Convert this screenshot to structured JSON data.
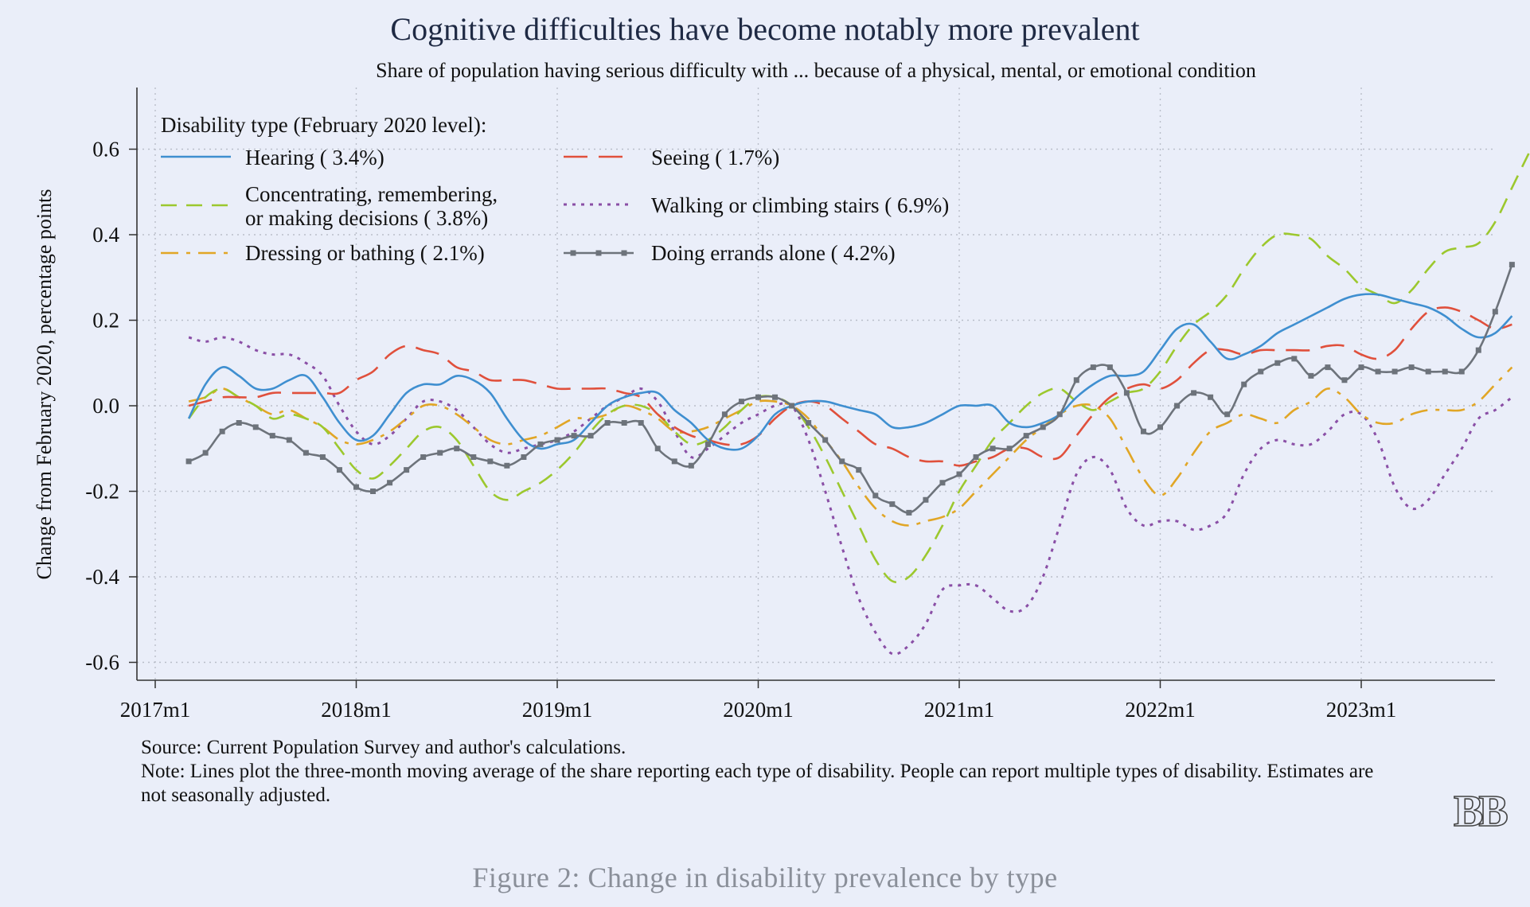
{
  "chart_data": {
    "type": "line",
    "title": "Cognitive difficulties have become notably more prevalent",
    "subtitle": "Share of population having serious difficulty with ... because of a physical, mental, or emotional condition",
    "xlabel": "",
    "ylabel": "Change from February 2020, percentage points",
    "ylim": [
      -0.64,
      0.72
    ],
    "yticks": [
      -0.6,
      -0.4,
      -0.2,
      0.0,
      0.2,
      0.4,
      0.6
    ],
    "ytick_labels": [
      "-0.6",
      "-0.4",
      "-0.2",
      "0.0",
      "0.2",
      "0.4",
      "0.6"
    ],
    "xticks": [
      "2017m1",
      "2018m1",
      "2019m1",
      "2020m1",
      "2021m1",
      "2022m1",
      "2023m1"
    ],
    "x_start": "2017m3",
    "x_end": "2023m8",
    "grid": true,
    "legend_title": "Disability type (February 2020 level):",
    "legend_position": "top-left",
    "series": [
      {
        "name": "Hearing ( 3.4%)",
        "color": "#3f8fd0",
        "dash": "solid",
        "markers": false,
        "values": [
          -0.03,
          0.05,
          0.09,
          0.07,
          0.04,
          0.04,
          0.06,
          0.07,
          0.02,
          -0.04,
          -0.08,
          -0.07,
          -0.02,
          0.03,
          0.05,
          0.05,
          0.07,
          0.06,
          0.03,
          -0.03,
          -0.08,
          -0.1,
          -0.09,
          -0.08,
          -0.04,
          0.0,
          0.02,
          0.03,
          0.03,
          -0.01,
          -0.04,
          -0.08,
          -0.1,
          -0.1,
          -0.07,
          -0.02,
          0.0,
          0.01,
          0.01,
          0.0,
          -0.01,
          -0.02,
          -0.05,
          -0.05,
          -0.04,
          -0.02,
          0.0,
          0.0,
          0.0,
          -0.04,
          -0.05,
          -0.04,
          -0.02,
          0.02,
          0.05,
          0.07,
          0.07,
          0.08,
          0.13,
          0.18,
          0.19,
          0.15,
          0.11,
          0.12,
          0.14,
          0.17,
          0.19,
          0.21,
          0.23,
          0.25,
          0.26,
          0.26,
          0.25,
          0.24,
          0.23,
          0.21,
          0.18,
          0.16,
          0.17,
          0.21
        ]
      },
      {
        "name": "Seeing ( 1.7%)",
        "color": "#e0503c",
        "dash": "long",
        "markers": false,
        "values": [
          0.0,
          0.01,
          0.02,
          0.02,
          0.02,
          0.03,
          0.03,
          0.03,
          0.03,
          0.03,
          0.06,
          0.08,
          0.12,
          0.14,
          0.13,
          0.12,
          0.09,
          0.08,
          0.06,
          0.06,
          0.06,
          0.05,
          0.04,
          0.04,
          0.04,
          0.04,
          0.03,
          0.02,
          -0.02,
          -0.05,
          -0.07,
          -0.08,
          -0.09,
          -0.09,
          -0.07,
          -0.03,
          0.0,
          0.01,
          0.0,
          -0.03,
          -0.06,
          -0.09,
          -0.1,
          -0.12,
          -0.13,
          -0.13,
          -0.14,
          -0.13,
          -0.12,
          -0.1,
          -0.1,
          -0.12,
          -0.12,
          -0.07,
          -0.02,
          0.02,
          0.04,
          0.05,
          0.04,
          0.06,
          0.1,
          0.13,
          0.13,
          0.12,
          0.13,
          0.13,
          0.13,
          0.13,
          0.14,
          0.14,
          0.12,
          0.11,
          0.13,
          0.18,
          0.22,
          0.23,
          0.22,
          0.2,
          0.18,
          0.19
        ]
      },
      {
        "name": "Concentrating, remembering, or making decisions ( 3.8%)",
        "color": "#9cc82e",
        "dash": "dash",
        "markers": false,
        "values": [
          -0.03,
          0.02,
          0.04,
          0.02,
          0.0,
          -0.03,
          -0.02,
          -0.03,
          -0.05,
          -0.1,
          -0.15,
          -0.17,
          -0.14,
          -0.1,
          -0.06,
          -0.05,
          -0.08,
          -0.14,
          -0.2,
          -0.22,
          -0.2,
          -0.18,
          -0.15,
          -0.11,
          -0.06,
          -0.02,
          0.0,
          0.0,
          -0.02,
          -0.06,
          -0.09,
          -0.08,
          -0.05,
          -0.01,
          0.02,
          0.02,
          0.0,
          -0.05,
          -0.12,
          -0.2,
          -0.28,
          -0.36,
          -0.41,
          -0.4,
          -0.35,
          -0.28,
          -0.2,
          -0.14,
          -0.08,
          -0.04,
          0.0,
          0.03,
          0.04,
          0.01,
          -0.01,
          0.01,
          0.03,
          0.04,
          0.08,
          0.14,
          0.19,
          0.22,
          0.26,
          0.32,
          0.37,
          0.4,
          0.4,
          0.39,
          0.35,
          0.32,
          0.28,
          0.26,
          0.24,
          0.27,
          0.32,
          0.36,
          0.37,
          0.38,
          0.43,
          0.51,
          0.59
        ]
      },
      {
        "name": "Walking or climbing stairs ( 6.9%)",
        "color": "#8a4fa6",
        "dash": "dot",
        "markers": false,
        "values": [
          0.16,
          0.15,
          0.16,
          0.15,
          0.13,
          0.12,
          0.12,
          0.1,
          0.07,
          0.0,
          -0.06,
          -0.09,
          -0.07,
          -0.03,
          0.01,
          0.01,
          -0.01,
          -0.05,
          -0.09,
          -0.11,
          -0.1,
          -0.09,
          -0.08,
          -0.06,
          -0.03,
          0.0,
          0.02,
          0.04,
          0.01,
          -0.06,
          -0.12,
          -0.1,
          -0.07,
          -0.04,
          -0.02,
          0.0,
          0.0,
          -0.08,
          -0.2,
          -0.33,
          -0.45,
          -0.53,
          -0.58,
          -0.56,
          -0.51,
          -0.43,
          -0.42,
          -0.42,
          -0.45,
          -0.48,
          -0.47,
          -0.4,
          -0.28,
          -0.16,
          -0.12,
          -0.15,
          -0.24,
          -0.28,
          -0.27,
          -0.27,
          -0.29,
          -0.28,
          -0.25,
          -0.16,
          -0.1,
          -0.08,
          -0.09,
          -0.09,
          -0.06,
          -0.02,
          -0.02,
          -0.08,
          -0.19,
          -0.24,
          -0.22,
          -0.16,
          -0.1,
          -0.03,
          -0.01,
          0.02
        ]
      },
      {
        "name": "Dressing or bathing ( 2.1%)",
        "color": "#e1a626",
        "dash": "dashdot",
        "markers": false,
        "values": [
          0.01,
          0.02,
          0.04,
          0.02,
          0.0,
          -0.02,
          -0.01,
          -0.03,
          -0.05,
          -0.08,
          -0.09,
          -0.08,
          -0.06,
          -0.03,
          0.0,
          0.0,
          -0.02,
          -0.05,
          -0.08,
          -0.09,
          -0.08,
          -0.07,
          -0.05,
          -0.03,
          -0.03,
          -0.02,
          0.0,
          -0.01,
          -0.03,
          -0.06,
          -0.06,
          -0.05,
          -0.03,
          -0.01,
          0.01,
          0.01,
          0.0,
          -0.03,
          -0.08,
          -0.13,
          -0.19,
          -0.24,
          -0.27,
          -0.28,
          -0.27,
          -0.26,
          -0.24,
          -0.2,
          -0.16,
          -0.12,
          -0.08,
          -0.05,
          -0.02,
          0.0,
          0.0,
          -0.03,
          -0.1,
          -0.17,
          -0.21,
          -0.17,
          -0.11,
          -0.06,
          -0.04,
          -0.02,
          -0.03,
          -0.04,
          -0.01,
          0.01,
          0.04,
          0.02,
          -0.02,
          -0.04,
          -0.04,
          -0.02,
          -0.01,
          -0.01,
          -0.01,
          0.01,
          0.05,
          0.09
        ]
      },
      {
        "name": "Doing errands alone ( 4.2%)",
        "color": "#6d737b",
        "dash": "solid",
        "markers": true,
        "values": [
          -0.13,
          -0.11,
          -0.06,
          -0.04,
          -0.05,
          -0.07,
          -0.08,
          -0.11,
          -0.12,
          -0.15,
          -0.19,
          -0.2,
          -0.18,
          -0.15,
          -0.12,
          -0.11,
          -0.1,
          -0.12,
          -0.13,
          -0.14,
          -0.12,
          -0.09,
          -0.08,
          -0.07,
          -0.07,
          -0.04,
          -0.04,
          -0.04,
          -0.1,
          -0.13,
          -0.14,
          -0.09,
          -0.02,
          0.01,
          0.02,
          0.02,
          0.0,
          -0.04,
          -0.08,
          -0.13,
          -0.15,
          -0.21,
          -0.23,
          -0.25,
          -0.22,
          -0.18,
          -0.16,
          -0.12,
          -0.1,
          -0.1,
          -0.07,
          -0.05,
          -0.02,
          0.06,
          0.09,
          0.09,
          0.03,
          -0.06,
          -0.05,
          0.0,
          0.03,
          0.02,
          -0.02,
          0.05,
          0.08,
          0.1,
          0.11,
          0.07,
          0.09,
          0.06,
          0.09,
          0.08,
          0.08,
          0.09,
          0.08,
          0.08,
          0.08,
          0.13,
          0.22,
          0.33
        ]
      }
    ]
  },
  "notes": {
    "source": "Source: Current Population Survey and author's calculations.",
    "note": "Note: Lines plot the three-month moving average of the share reporting each type of disability. People can report multiple types of disability. Estimates are not seasonally adjusted."
  },
  "caption": "Figure 2: Change in disability prevalence by type",
  "logo_text": "BB"
}
